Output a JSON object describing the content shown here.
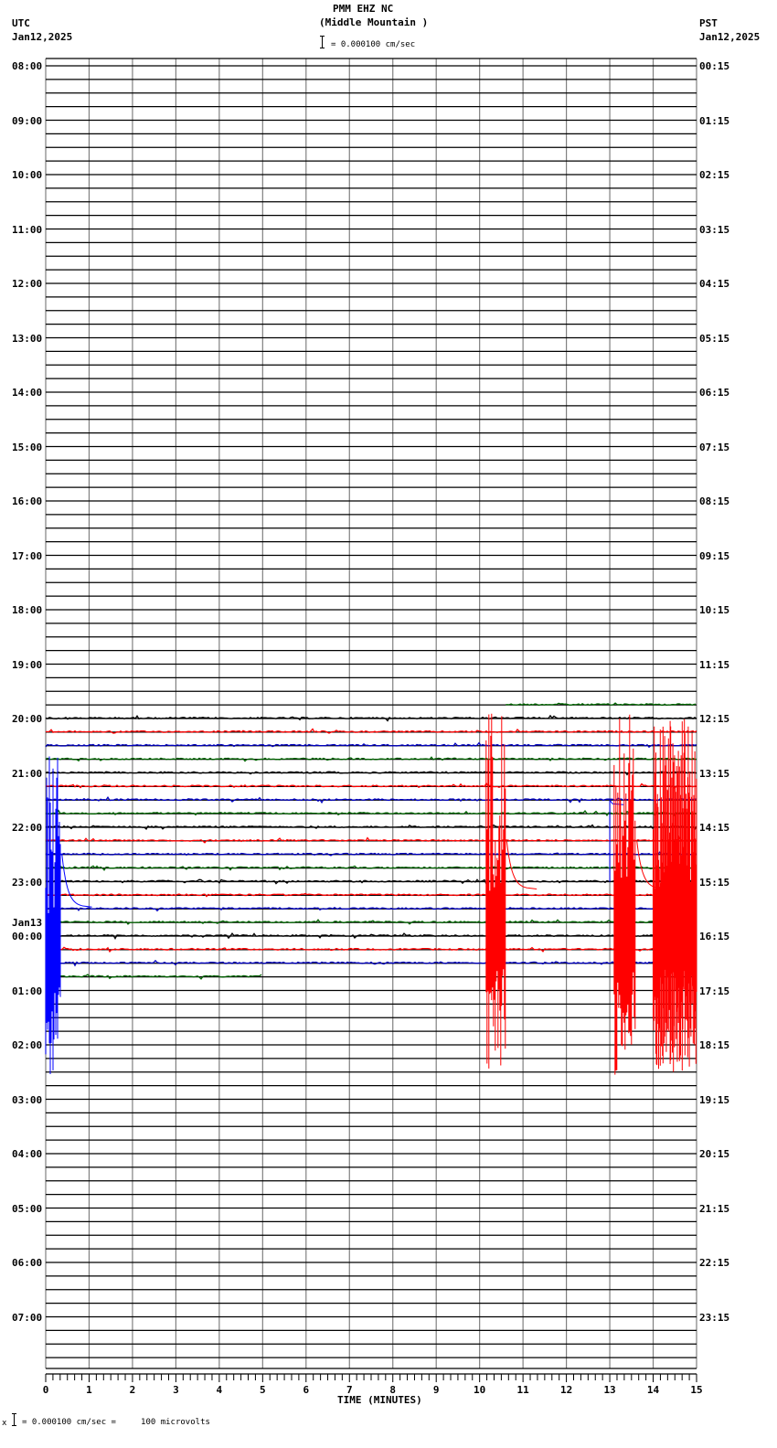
{
  "header": {
    "station": "PMM EHZ NC",
    "location": "(Middle Mountain )",
    "scale_text": "= 0.000100 cm/sec",
    "left_tz": "UTC",
    "left_date": "Jan12,2025",
    "right_tz": "PST",
    "right_date": "Jan12,2025"
  },
  "footer": {
    "prefix": "x",
    "scale_text": "= 0.000100 cm/sec =     100 microvolts"
  },
  "chart_data": {
    "type": "line",
    "title": "PMM EHZ NC (Middle Mountain )",
    "subtitle": "= 0.000100 cm/sec",
    "xlabel": "TIME (MINUTES)",
    "ylabel_left": "UTC",
    "ylabel_right": "PST",
    "xlim": [
      0,
      15
    ],
    "x_ticks": [
      "0",
      "1",
      "2",
      "3",
      "4",
      "5",
      "6",
      "7",
      "8",
      "9",
      "10",
      "11",
      "12",
      "13",
      "14",
      "15"
    ],
    "minor_ticks_per_minute": 6,
    "rows_per_hour": 4,
    "total_rows": 96,
    "grid": true,
    "left_hour_labels": [
      {
        "row": 0,
        "label": "08:00"
      },
      {
        "row": 4,
        "label": "09:00"
      },
      {
        "row": 8,
        "label": "10:00"
      },
      {
        "row": 12,
        "label": "11:00"
      },
      {
        "row": 16,
        "label": "12:00"
      },
      {
        "row": 20,
        "label": "13:00"
      },
      {
        "row": 24,
        "label": "14:00"
      },
      {
        "row": 28,
        "label": "15:00"
      },
      {
        "row": 32,
        "label": "16:00"
      },
      {
        "row": 36,
        "label": "17:00"
      },
      {
        "row": 40,
        "label": "18:00"
      },
      {
        "row": 44,
        "label": "19:00"
      },
      {
        "row": 48,
        "label": "20:00"
      },
      {
        "row": 52,
        "label": "21:00"
      },
      {
        "row": 56,
        "label": "22:00"
      },
      {
        "row": 60,
        "label": "23:00"
      },
      {
        "row": 64,
        "label": "00:00",
        "date": "Jan13"
      },
      {
        "row": 68,
        "label": "01:00"
      },
      {
        "row": 72,
        "label": "02:00"
      },
      {
        "row": 76,
        "label": "03:00"
      },
      {
        "row": 80,
        "label": "04:00"
      },
      {
        "row": 84,
        "label": "05:00"
      },
      {
        "row": 88,
        "label": "06:00"
      },
      {
        "row": 92,
        "label": "07:00"
      }
    ],
    "right_hour_labels": [
      {
        "row": 0,
        "label": "00:15"
      },
      {
        "row": 4,
        "label": "01:15"
      },
      {
        "row": 8,
        "label": "02:15"
      },
      {
        "row": 12,
        "label": "03:15"
      },
      {
        "row": 16,
        "label": "04:15"
      },
      {
        "row": 20,
        "label": "05:15"
      },
      {
        "row": 24,
        "label": "06:15"
      },
      {
        "row": 28,
        "label": "07:15"
      },
      {
        "row": 32,
        "label": "08:15"
      },
      {
        "row": 36,
        "label": "09:15"
      },
      {
        "row": 40,
        "label": "10:15"
      },
      {
        "row": 44,
        "label": "11:15"
      },
      {
        "row": 48,
        "label": "12:15"
      },
      {
        "row": 52,
        "label": "13:15"
      },
      {
        "row": 56,
        "label": "14:15"
      },
      {
        "row": 60,
        "label": "15:15"
      },
      {
        "row": 64,
        "label": "16:15"
      },
      {
        "row": 68,
        "label": "17:15"
      },
      {
        "row": 72,
        "label": "18:15"
      },
      {
        "row": 76,
        "label": "19:15"
      },
      {
        "row": 80,
        "label": "20:15"
      },
      {
        "row": 84,
        "label": "21:15"
      },
      {
        "row": 88,
        "label": "22:15"
      },
      {
        "row": 92,
        "label": "23:15"
      }
    ],
    "trace_colors": [
      "#000000",
      "#ff0000",
      "#0000c0",
      "#006400"
    ],
    "data_rows": {
      "first_row": 47,
      "first_start_min": 10.6,
      "last_row": 67,
      "last_end_min": 5.0
    },
    "events": [
      {
        "name": "blue-burst-start",
        "color": "#0000ff",
        "start_min": 0.0,
        "end_min": 0.35,
        "top_row": 51,
        "bottom_row": 74
      },
      {
        "name": "red-event-10min",
        "color": "#ff0000",
        "start_min": 10.15,
        "end_min": 10.6,
        "top_row": 48,
        "bottom_row": 74
      },
      {
        "name": "blue-step-13min",
        "color": "#0000ff",
        "start_min": 13.0,
        "end_min": 13.2,
        "top_row": 54,
        "bottom_row": 60
      },
      {
        "name": "red-event-13min",
        "color": "#ff0000",
        "start_min": 13.1,
        "end_min": 13.6,
        "top_row": 48,
        "bottom_row": 74
      },
      {
        "name": "red-swarm-14-15min",
        "color": "#ff0000",
        "start_min": 14.0,
        "end_min": 15.0,
        "top_row": 48,
        "bottom_row": 74
      }
    ]
  }
}
